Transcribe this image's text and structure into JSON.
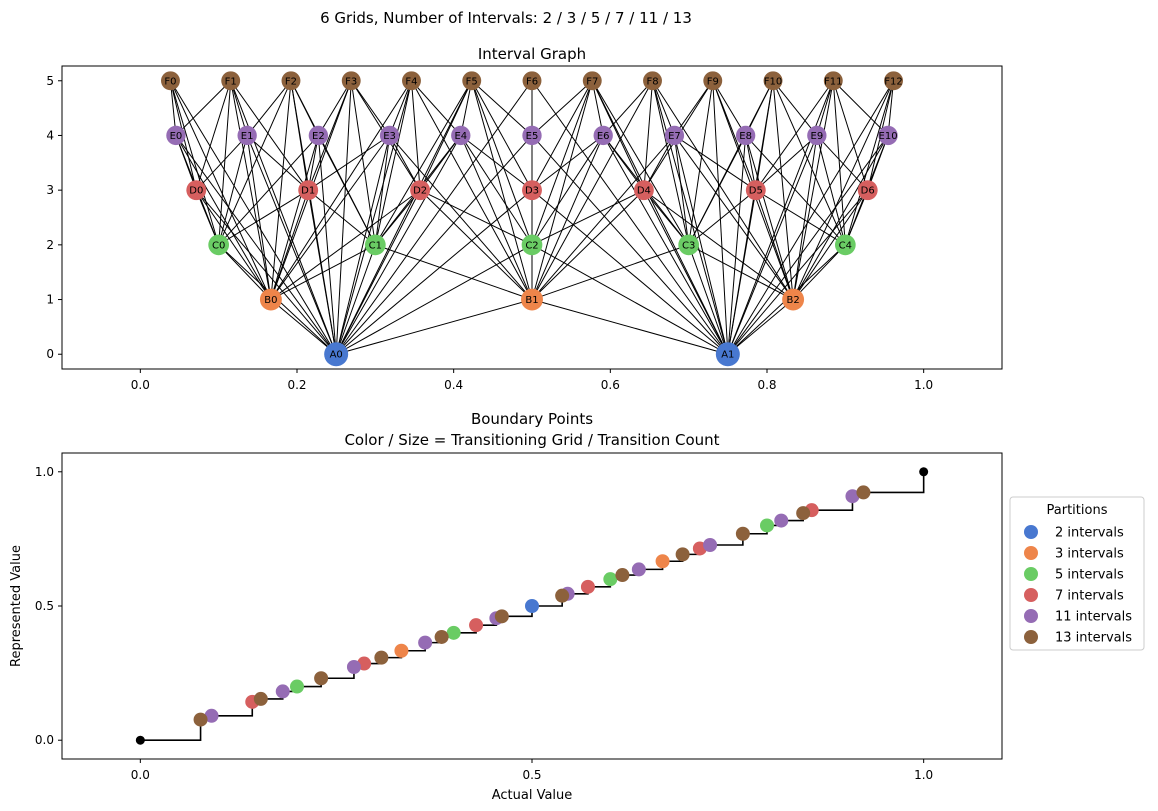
{
  "figure": {
    "suptitle": "6 Grids, Number of Intervals: 2 / 3 / 5 / 7 / 11 / 13"
  },
  "colors": {
    "A": "#4878d0",
    "B": "#ee854a",
    "C": "#6acc64",
    "D": "#d65f5f",
    "E": "#956cb4",
    "F": "#8c613c",
    "edge": "#000000",
    "endpoint": "#000000"
  },
  "chart_data": [
    {
      "type": "network",
      "title": "Interval Graph",
      "xlim": [
        -0.1,
        1.1
      ],
      "ylim": [
        -0.27,
        5.27
      ],
      "xticks": [
        "0.0",
        "0.2",
        "0.4",
        "0.6",
        "0.8",
        "1.0"
      ],
      "yticks": [
        "0",
        "1",
        "2",
        "3",
        "4",
        "5"
      ],
      "levels": [
        {
          "prefix": "A",
          "level": 0,
          "intervals": 2
        },
        {
          "prefix": "B",
          "level": 1,
          "intervals": 3
        },
        {
          "prefix": "C",
          "level": 2,
          "intervals": 5
        },
        {
          "prefix": "D",
          "level": 3,
          "intervals": 7
        },
        {
          "prefix": "E",
          "level": 4,
          "intervals": 11
        },
        {
          "prefix": "F",
          "level": 5,
          "intervals": 13
        }
      ],
      "node_labels": {
        "A": [
          "A0",
          "A1"
        ],
        "B": [
          "B0",
          "B1",
          "B2"
        ],
        "C": [
          "C0",
          "C1",
          "C2",
          "C3",
          "C4"
        ],
        "D": [
          "D0",
          "D1",
          "D2",
          "D3",
          "D4",
          "D5",
          "D6"
        ],
        "E": [
          "E0",
          "E1",
          "E2",
          "E3",
          "E4",
          "E5",
          "E6",
          "E7",
          "E8",
          "E9",
          "E10"
        ],
        "F": [
          "F0",
          "F1",
          "F2",
          "F3",
          "F4",
          "F5",
          "F6",
          "F7",
          "F8",
          "F9",
          "F10",
          "F11",
          "F12"
        ]
      },
      "edges": "an edge joins two nodes of different levels whose intervals overlap"
    },
    {
      "type": "scatter",
      "title": "Boundary Points",
      "subtitle": "Color / Size = Transitioning Grid / Transition Count",
      "xlabel": "Actual Value",
      "ylabel": "Represented Value",
      "xlim": [
        -0.1,
        1.1
      ],
      "ylim": [
        -0.07,
        1.07
      ],
      "xticks": [
        "0.0",
        "0.5",
        "1.0"
      ],
      "yticks": [
        "0.0",
        "0.5",
        "1.0"
      ],
      "legend": {
        "title": "Partitions",
        "placement": "right-outside",
        "entries": [
          "2 intervals",
          "3 intervals",
          "5 intervals",
          "7 intervals",
          "11 intervals",
          "13 intervals"
        ]
      },
      "series": [
        {
          "name": "2 intervals",
          "color": "#4878d0",
          "points": [
            [
              0.5,
              0.5
            ]
          ]
        },
        {
          "name": "3 intervals",
          "color": "#ee854a",
          "points": [
            [
              0.3333,
              0.3333
            ],
            [
              0.6667,
              0.6667
            ]
          ]
        },
        {
          "name": "5 intervals",
          "color": "#6acc64",
          "points": [
            [
              0.2,
              0.2
            ],
            [
              0.4,
              0.4
            ],
            [
              0.6,
              0.6
            ],
            [
              0.8,
              0.8
            ]
          ]
        },
        {
          "name": "7 intervals",
          "color": "#d65f5f",
          "points": [
            [
              0.1429,
              0.1429
            ],
            [
              0.2857,
              0.2857
            ],
            [
              0.4286,
              0.4286
            ],
            [
              0.5714,
              0.5714
            ],
            [
              0.7143,
              0.7143
            ],
            [
              0.8571,
              0.8571
            ]
          ]
        },
        {
          "name": "11 intervals",
          "color": "#956cb4",
          "points": [
            [
              0.0909,
              0.0909
            ],
            [
              0.1818,
              0.1818
            ],
            [
              0.2727,
              0.2727
            ],
            [
              0.3636,
              0.3636
            ],
            [
              0.4545,
              0.4545
            ],
            [
              0.5455,
              0.5455
            ],
            [
              0.6364,
              0.6364
            ],
            [
              0.7273,
              0.7273
            ],
            [
              0.8182,
              0.8182
            ],
            [
              0.9091,
              0.9091
            ]
          ]
        },
        {
          "name": "13 intervals",
          "color": "#8c613c",
          "points": [
            [
              0.0769,
              0.0769
            ],
            [
              0.1538,
              0.1538
            ],
            [
              0.2308,
              0.2308
            ],
            [
              0.3077,
              0.3077
            ],
            [
              0.3846,
              0.3846
            ],
            [
              0.4615,
              0.4615
            ],
            [
              0.5385,
              0.5385
            ],
            [
              0.6154,
              0.6154
            ],
            [
              0.6923,
              0.6923
            ],
            [
              0.7692,
              0.7692
            ],
            [
              0.8462,
              0.8462
            ],
            [
              0.9231,
              0.9231
            ]
          ]
        },
        {
          "name": "",
          "color": "#000000",
          "points": [
            [
              0.0,
              0.0
            ],
            [
              1.0,
              1.0
            ]
          ]
        }
      ],
      "step_line": "staircase through all boundary points, rising at each transition"
    }
  ]
}
